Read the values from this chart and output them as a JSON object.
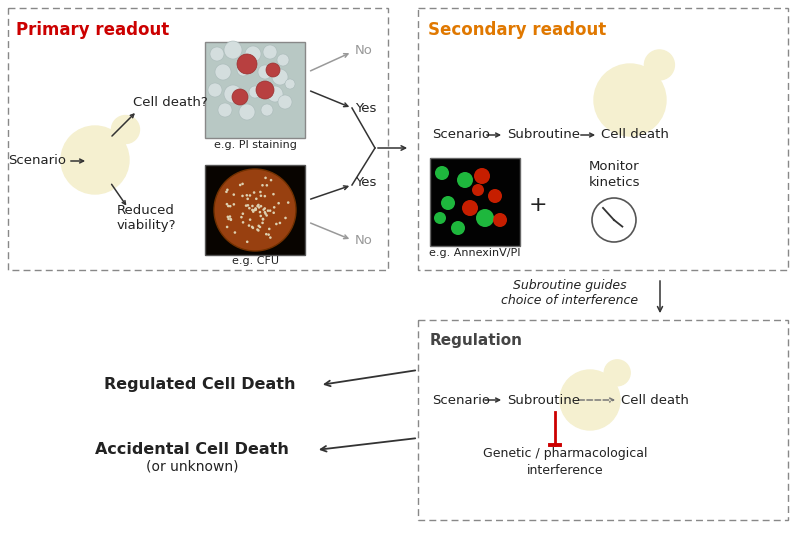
{
  "primary_title": "Primary readout",
  "primary_title_color": "#cc0000",
  "secondary_title": "Secondary readout",
  "secondary_title_color": "#e07800",
  "regulation_title": "Regulation",
  "regulation_title_color": "#444444",
  "bg_color": "#ffffff",
  "cell_shape_color": "#f5f0d0",
  "text_color": "#222222",
  "gray_text_color": "#999999"
}
